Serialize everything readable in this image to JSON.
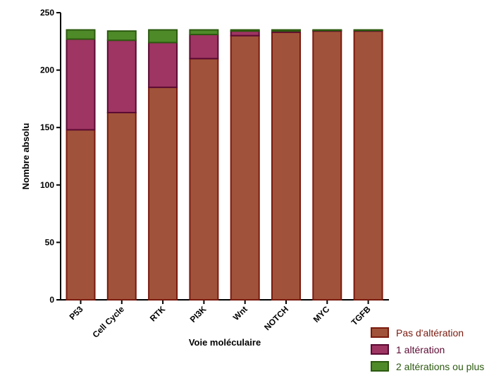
{
  "chart_data": {
    "type": "bar",
    "stacked": true,
    "title": "",
    "xlabel": "Voie moléculaire",
    "ylabel": "Nombre absolu",
    "ylim": [
      0,
      250
    ],
    "yticks": [
      0,
      50,
      100,
      150,
      200,
      250
    ],
    "categories": [
      "P53",
      "Cell Cycle",
      "RTK",
      "PI3K",
      "Wnt",
      "NOTCH",
      "MYC",
      "TGFB"
    ],
    "series": [
      {
        "name": "Pas d'altération",
        "values": [
          148,
          163,
          185,
          210,
          230,
          233,
          234,
          234
        ],
        "fill": "#a0533a",
        "stroke": "#7a1a0e"
      },
      {
        "name": "1 altération",
        "values": [
          79,
          63,
          39,
          21,
          4,
          1,
          0.5,
          0.5
        ],
        "fill": "#9e3562",
        "stroke": "#5c0a33"
      },
      {
        "name": "2 altérations ou plus",
        "values": [
          8,
          8,
          11,
          4,
          1,
          1,
          0.5,
          0.5
        ],
        "fill": "#4f8a28",
        "stroke": "#2c5a10"
      }
    ],
    "legend_position": "bottom-right",
    "grid": false
  }
}
